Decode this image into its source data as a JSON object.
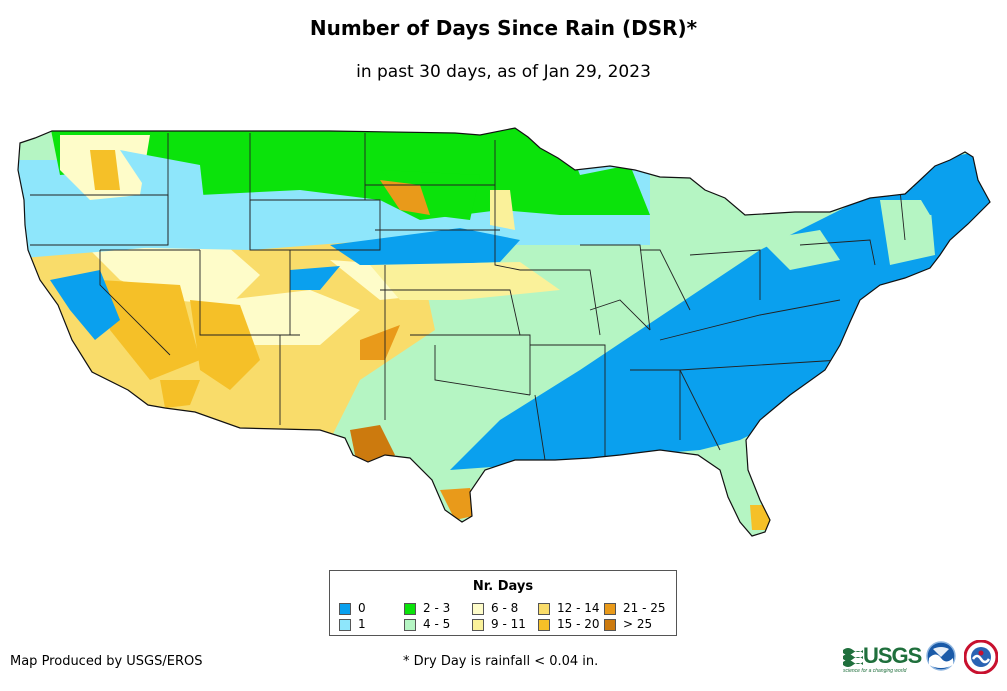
{
  "header": {
    "title": "Number of Days Since Rain (DSR)*",
    "subtitle": "in past 30 days, as of Jan 29, 2023"
  },
  "legend": {
    "title": "Nr. Days",
    "items": [
      {
        "label": "0",
        "color": "#0aa0ee"
      },
      {
        "label": "1",
        "color": "#8ee6fb"
      },
      {
        "label": "2 - 3",
        "color": "#0be30b"
      },
      {
        "label": "4 - 5",
        "color": "#b5f5c3"
      },
      {
        "label": "6 - 8",
        "color": "#fefcc9"
      },
      {
        "label": "9 - 11",
        "color": "#faf19a"
      },
      {
        "label": "12 - 14",
        "color": "#f9dc6a"
      },
      {
        "label": "15 - 20",
        "color": "#f5c028"
      },
      {
        "label": "21 - 25",
        "color": "#e99a1a"
      },
      {
        "label": "> 25",
        "color": "#cc7a0e"
      }
    ]
  },
  "footer": {
    "credit": "Map Produced by USGS/EROS",
    "footnote": "* Dry Day is rainfall < 0.04 in."
  },
  "logos": {
    "usgs": "USGS",
    "usgs_tagline": "science for a changing world",
    "noaa": "noaa-logo",
    "nws": "nws-logo"
  },
  "map": {
    "type": "choropleth",
    "region": "Contiguous United States"
  }
}
